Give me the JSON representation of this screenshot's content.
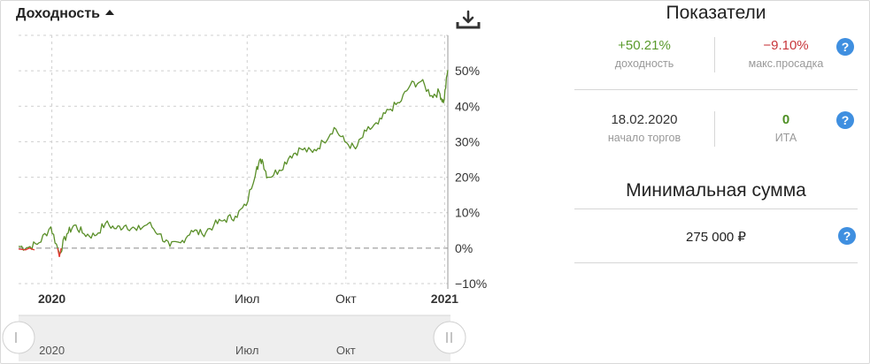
{
  "chart": {
    "title": "Доходность",
    "download_icon": "download-icon",
    "y_ticks": [
      "50%",
      "40%",
      "30%",
      "20%",
      "10%",
      "0%",
      "−10%"
    ],
    "x_ticks": [
      {
        "label": "2020",
        "bold": true
      },
      {
        "label": "Июл",
        "bold": false
      },
      {
        "label": "Окт",
        "bold": false
      },
      {
        "label": "2021",
        "bold": true
      }
    ],
    "navigator_labels": [
      "2020",
      "Июл",
      "Окт"
    ]
  },
  "chart_data": {
    "type": "line",
    "title": "Доходность",
    "xlabel": "",
    "ylabel": "",
    "x_ticks": [
      "2020",
      "Июл",
      "Окт",
      "2021"
    ],
    "y_unit": "%",
    "ylim": [
      -10,
      50
    ],
    "grid": true,
    "colors": {
      "line": "#5a8f29",
      "negative": "#e53935",
      "zero_line": "#888888"
    },
    "series": [
      {
        "x": [
          "2019-12-01",
          "2019-12-10",
          "2019-12-20",
          "2019-12-31",
          "2020-01-08",
          "2020-01-15",
          "2020-01-22",
          "2020-01-31",
          "2020-02-10",
          "2020-02-20",
          "2020-03-01",
          "2020-03-10",
          "2020-03-20",
          "2020-03-31",
          "2020-04-10",
          "2020-04-20",
          "2020-04-30",
          "2020-05-10",
          "2020-05-20",
          "2020-05-31",
          "2020-06-10",
          "2020-06-20",
          "2020-06-30",
          "2020-07-10",
          "2020-07-15",
          "2020-07-20",
          "2020-07-31",
          "2020-08-10",
          "2020-08-20",
          "2020-08-31",
          "2020-09-10",
          "2020-09-20",
          "2020-09-30",
          "2020-10-10",
          "2020-10-20",
          "2020-10-31",
          "2020-11-10",
          "2020-11-20",
          "2020-11-30",
          "2020-12-10",
          "2020-12-20",
          "2020-12-27",
          "2020-12-31",
          "2021-01-04"
        ],
        "y": [
          0.5,
          0.2,
          1.5,
          6.0,
          -1.5,
          4.0,
          6.5,
          4.0,
          3.5,
          7.0,
          5.5,
          6.5,
          5.0,
          7.0,
          4.0,
          0.5,
          1.5,
          5.0,
          4.0,
          6.5,
          8.0,
          9.0,
          12.0,
          23.0,
          25.0,
          20.0,
          22.0,
          26.0,
          28.0,
          27.0,
          30.0,
          34.0,
          30.0,
          28.0,
          33.0,
          35.0,
          39.0,
          41.0,
          46.0,
          47.0,
          43.0,
          44.0,
          41.0,
          50.2
        ]
      }
    ]
  },
  "panel": {
    "indicators_title": "Показатели",
    "return_value": "+50.21%",
    "return_label": "доходность",
    "drawdown_value": "−9.10%",
    "drawdown_label": "макс.просадка",
    "start_value": "18.02.2020",
    "start_label": "начало торгов",
    "ita_value": "0",
    "ita_label": "ИТА",
    "min_title": "Минимальная сумма",
    "min_value": "275 000 ₽",
    "help_glyph": "?"
  }
}
